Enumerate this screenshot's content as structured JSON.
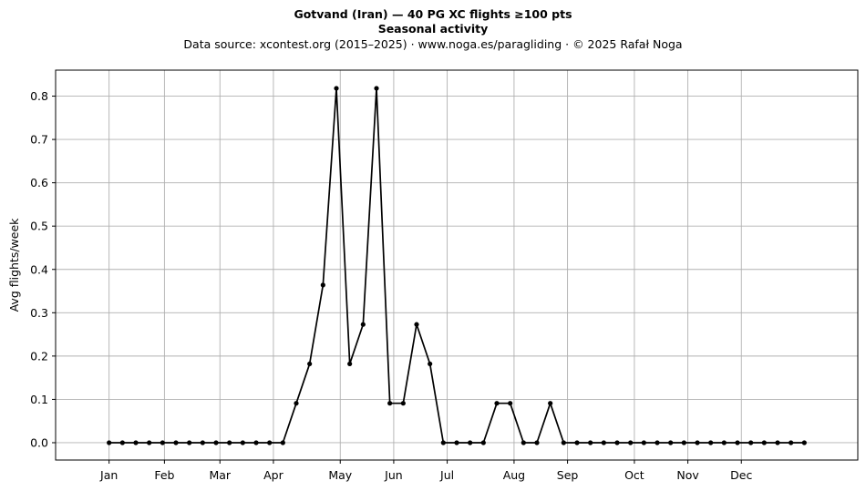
{
  "chart_data": {
    "type": "line",
    "title": "Gotvand (Iran)  —  40 PG XC flights ≥100 pts",
    "subtitle": "Seasonal activity",
    "source_line": "Data source: xcontest.org (2015–2025)  ·  www.noga.es/paragliding  ·  © 2025 Rafał Noga",
    "xlabel": "",
    "ylabel": "Avg flights/week",
    "xlim": [
      -4,
      56
    ],
    "ylim": [
      -0.04,
      0.86
    ],
    "x_ticks": [
      {
        "label": "Jan",
        "x": 0
      },
      {
        "label": "Feb",
        "x": 4.14
      },
      {
        "label": "Mar",
        "x": 8.29
      },
      {
        "label": "Apr",
        "x": 12.29
      },
      {
        "label": "May",
        "x": 17.29
      },
      {
        "label": "Jun",
        "x": 21.29
      },
      {
        "label": "Jul",
        "x": 25.29
      },
      {
        "label": "Aug",
        "x": 30.29
      },
      {
        "label": "Sep",
        "x": 34.29
      },
      {
        "label": "Oct",
        "x": 39.29
      },
      {
        "label": "Nov",
        "x": 43.29
      },
      {
        "label": "Dec",
        "x": 47.29
      }
    ],
    "y_ticks": [
      0.0,
      0.1,
      0.2,
      0.3,
      0.4,
      0.5,
      0.6,
      0.7,
      0.8
    ],
    "y_tick_labels": [
      "0.0",
      "0.1",
      "0.2",
      "0.3",
      "0.4",
      "0.5",
      "0.6",
      "0.7",
      "0.8"
    ],
    "grid": true,
    "series": [
      {
        "color": "#000000",
        "marker": "circle",
        "values": [
          0,
          0,
          0,
          0,
          0,
          0,
          0,
          0,
          0,
          0,
          0,
          0,
          0,
          0,
          0.091,
          0.182,
          0.364,
          0.818,
          0.182,
          0.273,
          0.818,
          0.091,
          0.091,
          0.273,
          0.182,
          0,
          0,
          0,
          0,
          0.091,
          0.091,
          0,
          0,
          0.091,
          0,
          0,
          0,
          0,
          0,
          0,
          0,
          0,
          0,
          0,
          0,
          0,
          0,
          0,
          0,
          0,
          0,
          0,
          0
        ]
      }
    ]
  }
}
